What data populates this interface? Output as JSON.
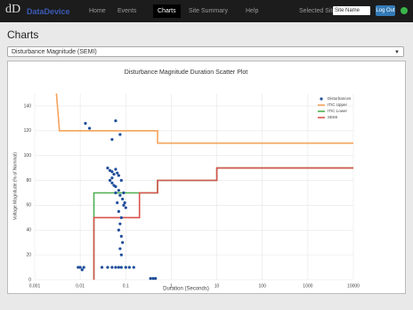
{
  "nav": {
    "brand": "dD",
    "brand_text": "DataDevice",
    "items": [
      "Home",
      "Events",
      "Charts",
      "Site Summary",
      "Help"
    ],
    "active": 2,
    "site_label": "Selected Site:",
    "site_value": "Site Name",
    "logout": "Log Out"
  },
  "heading": "Charts",
  "dropdown": "Disturbance Magnitude (SEMI)",
  "chart_data": {
    "type": "scatter",
    "title": "Disturbance Magnitude Duration Scatter Plot",
    "xlabel": "Duration (Seconds)",
    "ylabel": "Voltage Magnitude (% of Nominal)",
    "xscale": "log",
    "xlim": [
      0.001,
      10000
    ],
    "xticks": [
      0.001,
      0.01,
      0.1,
      1,
      10,
      100,
      1000,
      10000
    ],
    "ylim": [
      0,
      150
    ],
    "yticks": [
      0,
      20,
      40,
      60,
      80,
      100,
      120,
      140
    ],
    "grid": true,
    "legend": "top-right",
    "series": [
      {
        "name": "Disturbances",
        "type": "scatter",
        "color": "#1f4e9a",
        "x": [
          0.009,
          0.01,
          0.011,
          0.012,
          0.013,
          0.016,
          0.03,
          0.04,
          0.05,
          0.06,
          0.07,
          0.08,
          0.1,
          0.12,
          0.15,
          0.35,
          0.4,
          0.45,
          0.04,
          0.045,
          0.05,
          0.055,
          0.06,
          0.065,
          0.07,
          0.045,
          0.05,
          0.06,
          0.07,
          0.08,
          0.085,
          0.09,
          0.075,
          0.065,
          0.07,
          0.08,
          0.075,
          0.07,
          0.08,
          0.085,
          0.075,
          0.08,
          0.06,
          0.09,
          0.095,
          0.05,
          0.055,
          0.1,
          0.06,
          0.05,
          0.075
        ],
        "values": [
          10,
          10,
          8,
          10,
          126,
          122,
          10,
          10,
          10,
          10,
          10,
          10,
          10,
          10,
          10,
          1,
          1,
          1,
          90,
          88,
          87,
          85,
          89,
          86,
          84,
          80,
          78,
          75,
          72,
          80,
          65,
          60,
          68,
          62,
          55,
          50,
          45,
          40,
          35,
          30,
          25,
          20,
          70,
          70,
          62,
          82,
          76,
          58,
          128,
          113,
          117
        ]
      },
      {
        "name": "ITIC Upper",
        "type": "line",
        "color": "#f5a35c",
        "x": [
          0.003,
          0.0035,
          0.5,
          0.5,
          10000
        ],
        "values": [
          150,
          120,
          120,
          110,
          110
        ]
      },
      {
        "name": "ITIC Lower",
        "type": "line",
        "color": "#4caf50",
        "x": [
          0.02,
          0.02,
          0.5,
          0.5,
          10,
          10,
          10000
        ],
        "values": [
          0,
          70,
          70,
          80,
          80,
          90,
          90
        ]
      },
      {
        "name": "SEMI",
        "type": "line",
        "color": "#d9534f",
        "x": [
          0.02,
          0.02,
          0.2,
          0.2,
          0.5,
          0.5,
          10,
          10,
          10000
        ],
        "values": [
          0,
          50,
          50,
          70,
          70,
          80,
          80,
          90,
          90
        ]
      }
    ]
  }
}
